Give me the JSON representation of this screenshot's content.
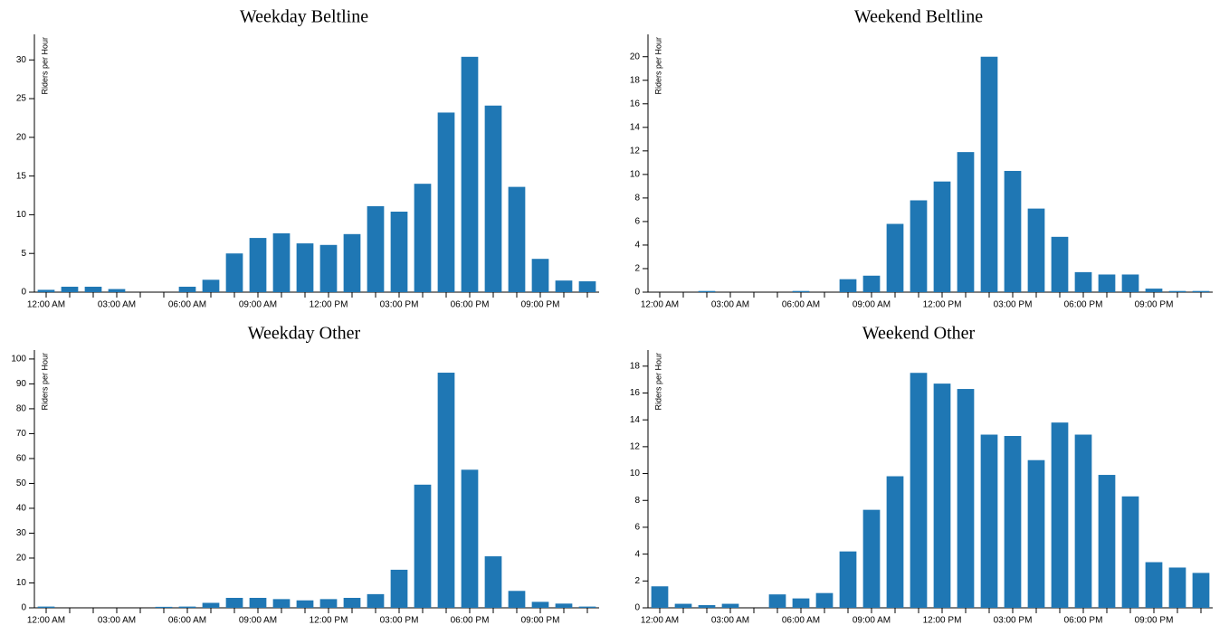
{
  "chart_data": [
    {
      "type": "bar",
      "title": "Weekday Beltline",
      "y_label": "Riders per Hour",
      "categories": [
        "12:00 AM",
        null,
        null,
        "03:00 AM",
        null,
        null,
        "06:00 AM",
        null,
        null,
        "09:00 AM",
        null,
        null,
        "12:00 PM",
        null,
        null,
        "03:00 PM",
        null,
        null,
        "06:00 PM",
        null,
        null,
        "09:00 PM",
        null,
        null
      ],
      "values": [
        0.3,
        0.7,
        0.7,
        0.4,
        0,
        0,
        0.7,
        1.6,
        5,
        7,
        7.6,
        6.3,
        6.1,
        7.5,
        11.1,
        10.4,
        14,
        23.2,
        30.4,
        24.1,
        13.6,
        4.3,
        1.5,
        1.4
      ],
      "color": "#1f77b4",
      "ylim": [
        0,
        33.3
      ],
      "yticks": [
        0,
        5,
        10,
        15,
        20,
        25,
        30
      ]
    },
    {
      "type": "bar",
      "title": "Weekend Beltline",
      "y_label": "Riders per Hour",
      "categories": [
        "12:00 AM",
        null,
        null,
        "03:00 AM",
        null,
        null,
        "06:00 AM",
        null,
        null,
        "09:00 AM",
        null,
        null,
        "12:00 PM",
        null,
        null,
        "03:00 PM",
        null,
        null,
        "06:00 PM",
        null,
        null,
        "09:00 PM",
        null,
        null
      ],
      "values": [
        0,
        0,
        0.1,
        0,
        0,
        0,
        0.1,
        0,
        1.1,
        1.4,
        5.8,
        7.8,
        9.4,
        11.9,
        20,
        10.3,
        7.1,
        4.7,
        1.7,
        1.5,
        1.5,
        0.3,
        0.1,
        0.1
      ],
      "color": "#1f77b4",
      "ylim": [
        0,
        21.9
      ],
      "yticks": [
        0,
        2,
        4,
        6,
        8,
        10,
        12,
        14,
        16,
        18,
        20
      ]
    },
    {
      "type": "bar",
      "title": "Weekday Other",
      "y_label": "Riders per Hour",
      "categories": [
        "12:00 AM",
        null,
        null,
        "03:00 AM",
        null,
        null,
        "06:00 AM",
        null,
        null,
        "09:00 AM",
        null,
        null,
        "12:00 PM",
        null,
        null,
        "03:00 PM",
        null,
        null,
        "06:00 PM",
        null,
        null,
        "09:00 PM",
        null,
        null
      ],
      "values": [
        0.5,
        0,
        0,
        0,
        0,
        0.4,
        0.5,
        2,
        4,
        4,
        3.5,
        3,
        3.5,
        4,
        5.5,
        15.3,
        49.5,
        94.5,
        55.5,
        20.7,
        6.8,
        2.4,
        1.7,
        0.5
      ],
      "color": "#1f77b4",
      "ylim": [
        0,
        103.6
      ],
      "yticks": [
        0,
        10,
        20,
        30,
        40,
        50,
        60,
        70,
        80,
        90,
        100
      ]
    },
    {
      "type": "bar",
      "title": "Weekend Other",
      "y_label": "Riders per Hour",
      "categories": [
        "12:00 AM",
        null,
        null,
        "03:00 AM",
        null,
        null,
        "06:00 AM",
        null,
        null,
        "09:00 AM",
        null,
        null,
        "12:00 PM",
        null,
        null,
        "03:00 PM",
        null,
        null,
        "06:00 PM",
        null,
        null,
        "09:00 PM",
        null,
        null
      ],
      "values": [
        1.6,
        0.3,
        0.2,
        0.3,
        0,
        1.0,
        0.7,
        1.1,
        4.2,
        7.3,
        9.8,
        17.5,
        16.7,
        16.3,
        12.9,
        12.8,
        11,
        13.8,
        12.9,
        9.9,
        8.3,
        3.4,
        3,
        2.6
      ],
      "color": "#1f77b4",
      "ylim": [
        0,
        19.2
      ],
      "yticks": [
        0,
        2,
        4,
        6,
        8,
        10,
        12,
        14,
        16,
        18
      ]
    }
  ]
}
